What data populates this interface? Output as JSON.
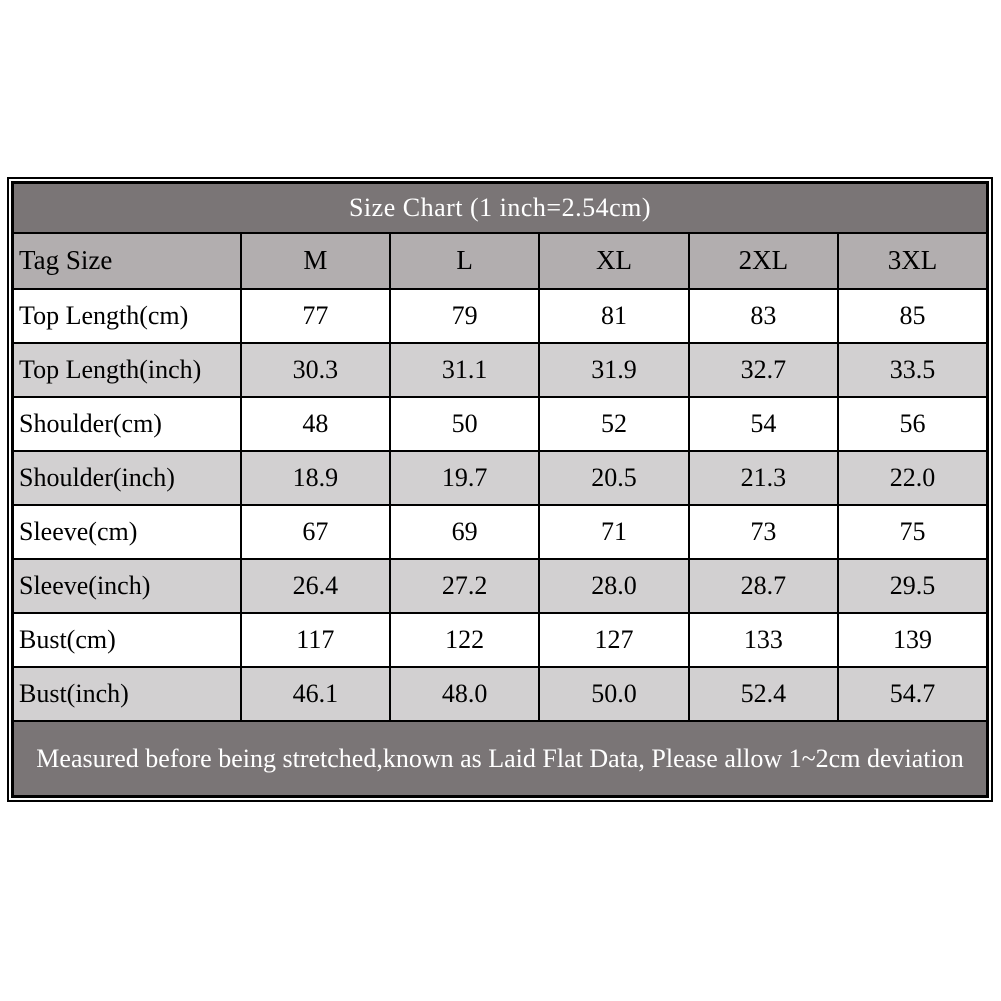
{
  "chart_data": {
    "type": "table",
    "title": "Size Chart (1 inch=2.54cm)",
    "columns": [
      "Tag Size",
      "M",
      "L",
      "XL",
      "2XL",
      "3XL"
    ],
    "rows": [
      {
        "label": "Top Length(cm)",
        "values": [
          "77",
          "79",
          "81",
          "83",
          "85"
        ]
      },
      {
        "label": "Top Length(inch)",
        "values": [
          "30.3",
          "31.1",
          "31.9",
          "32.7",
          "33.5"
        ]
      },
      {
        "label": "Shoulder(cm)",
        "values": [
          "48",
          "50",
          "52",
          "54",
          "56"
        ]
      },
      {
        "label": "Shoulder(inch)",
        "values": [
          "18.9",
          "19.7",
          "20.5",
          "21.3",
          "22.0"
        ]
      },
      {
        "label": "Sleeve(cm)",
        "values": [
          "67",
          "69",
          "71",
          "73",
          "75"
        ]
      },
      {
        "label": "Sleeve(inch)",
        "values": [
          "26.4",
          "27.2",
          "28.0",
          "28.7",
          "29.5"
        ]
      },
      {
        "label": "Bust(cm)",
        "values": [
          "117",
          "122",
          "127",
          "133",
          "139"
        ]
      },
      {
        "label": "Bust(inch)",
        "values": [
          "46.1",
          "48.0",
          "50.0",
          "52.4",
          "54.7"
        ]
      }
    ],
    "footer": "Measured before being stretched,known as Laid Flat Data, Please allow 1~2cm deviation",
    "layout_hints": {
      "row_striping": "cm rows white, inch rows light gray",
      "title_and_footer": "dark gray bands with white bold text",
      "grid": "black 2px inner lines, double black outer border"
    }
  },
  "colors": {
    "header_bg": "#7a7576",
    "subheader_bg": "#b2aeaf",
    "alt_row_bg": "#d2d0d1",
    "row_bg": "#ffffff",
    "border": "#000000",
    "title_text": "#ffffff",
    "body_text": "#000000"
  }
}
